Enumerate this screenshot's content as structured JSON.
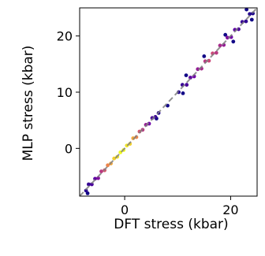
{
  "chart_data": {
    "type": "scatter",
    "title": "",
    "xlabel": "DFT stress (kbar)",
    "ylabel": "MLP stress (kbar)",
    "xlim": [
      -8.5,
      25
    ],
    "ylim": [
      -8.5,
      25
    ],
    "xticks": [
      0,
      20
    ],
    "yticks": [
      0,
      10,
      20
    ],
    "xtick_labels": [
      "0",
      "20"
    ],
    "ytick_labels": [
      "0",
      "10",
      "20"
    ],
    "reference_line": {
      "from": [
        -8.5,
        -8.5
      ],
      "to": [
        25,
        25
      ],
      "color": "#808080",
      "style": "dashed"
    },
    "grid": false,
    "colormap": "plasma-like (purple at low density, yellow at high density)",
    "series": [
      {
        "points": [
          [
            -7.3,
            -7.5
          ],
          [
            -6.8,
            -6.4
          ],
          [
            -6.2,
            -6.4
          ],
          [
            -5.6,
            -5.4
          ],
          [
            -5.0,
            -5.3
          ],
          [
            -4.4,
            -4.1
          ],
          [
            -3.8,
            -3.9
          ],
          [
            -3.2,
            -3.0
          ],
          [
            -2.6,
            -2.7
          ],
          [
            -2.0,
            -1.8
          ],
          [
            -1.4,
            -1.5
          ],
          [
            -0.8,
            -0.7
          ],
          [
            -0.2,
            -0.3
          ],
          [
            0.4,
            0.5
          ],
          [
            1.0,
            0.8
          ],
          [
            1.6,
            1.8
          ],
          [
            2.2,
            2.0
          ],
          [
            2.8,
            3.0
          ],
          [
            3.4,
            3.3
          ],
          [
            4.0,
            4.2
          ],
          [
            4.6,
            4.4
          ],
          [
            5.2,
            5.4
          ],
          [
            5.8,
            5.6
          ],
          [
            6.4,
            6.3
          ],
          [
            10.2,
            10.0
          ],
          [
            10.9,
            11.3
          ],
          [
            11.7,
            11.3
          ],
          [
            12.4,
            12.6
          ],
          [
            13.1,
            12.8
          ],
          [
            13.8,
            14.1
          ],
          [
            14.5,
            14.2
          ],
          [
            15.2,
            15.5
          ],
          [
            15.9,
            15.6
          ],
          [
            16.6,
            16.9
          ],
          [
            17.3,
            17.0
          ],
          [
            18.0,
            18.3
          ],
          [
            18.7,
            18.4
          ],
          [
            19.4,
            19.7
          ],
          [
            20.1,
            19.8
          ],
          [
            20.8,
            21.1
          ],
          [
            21.5,
            21.2
          ],
          [
            22.2,
            22.5
          ],
          [
            22.9,
            22.6
          ],
          [
            23.6,
            23.9
          ],
          [
            24.2,
            24.0
          ],
          [
            -7.0,
            -8.0
          ],
          [
            6.0,
            5.3
          ],
          [
            11.0,
            9.8
          ],
          [
            11.6,
            13.0
          ],
          [
            15.0,
            16.4
          ],
          [
            19.0,
            20.2
          ],
          [
            20.5,
            19.0
          ],
          [
            23.0,
            24.7
          ],
          [
            24.0,
            22.9
          ],
          [
            8.1,
            7.6
          ]
        ],
        "density": [
          0.05,
          0.1,
          0.15,
          0.2,
          0.3,
          0.45,
          0.55,
          0.7,
          0.8,
          0.9,
          0.95,
          1.0,
          1.0,
          0.95,
          0.9,
          0.8,
          0.7,
          0.55,
          0.45,
          0.35,
          0.25,
          0.15,
          0.1,
          0.05,
          0.05,
          0.1,
          0.15,
          0.2,
          0.25,
          0.35,
          0.4,
          0.45,
          0.5,
          0.5,
          0.45,
          0.4,
          0.35,
          0.3,
          0.25,
          0.2,
          0.15,
          0.1,
          0.08,
          0.05,
          0.03,
          0.0,
          0.0,
          0.0,
          0.0,
          0.0,
          0.0,
          0.0,
          0.0,
          0.0,
          0.0
        ]
      }
    ]
  }
}
